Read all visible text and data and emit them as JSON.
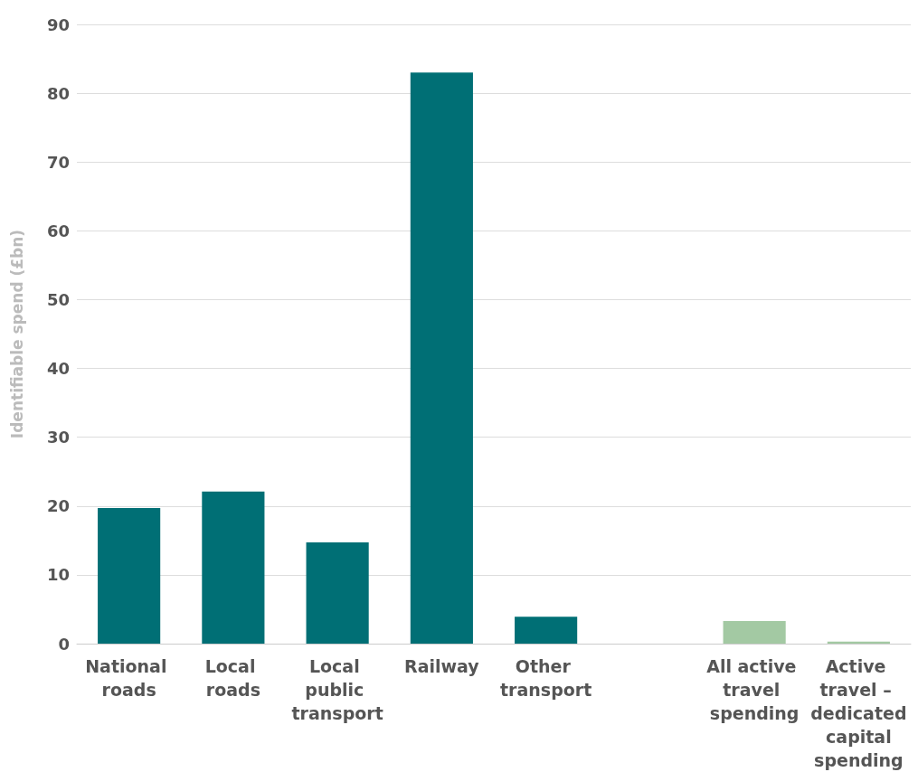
{
  "chart_data": {
    "type": "bar",
    "ylabel": "Identifiable spend (£bn)",
    "categories": [
      "National roads",
      "Local roads",
      "Local public transport",
      "Railway",
      "Other transport",
      null,
      "All active travel spending",
      "Active travel – dedicated capital spending"
    ],
    "values": [
      19.7,
      22.1,
      14.7,
      83.0,
      3.9,
      null,
      3.3,
      0.3
    ],
    "colors": [
      "#006f75",
      "#006f75",
      "#006f75",
      "#006f75",
      "#006f75",
      "#006f75",
      "#a3c9a3",
      "#a3c9a3"
    ],
    "ylim": [
      0,
      90
    ],
    "yticks": [
      0,
      10,
      20,
      30,
      40,
      50,
      60,
      70,
      80,
      90
    ],
    "grid": "y"
  }
}
